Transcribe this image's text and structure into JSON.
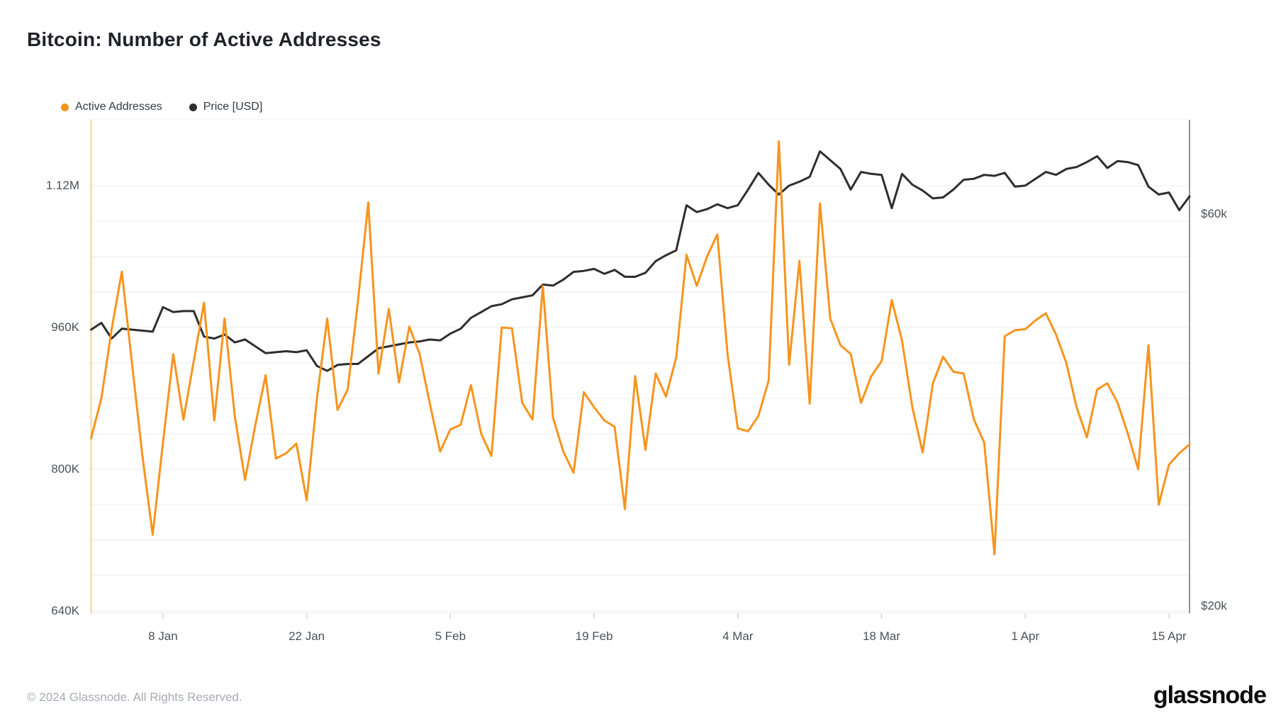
{
  "title": "Bitcoin: Number of Active Addresses",
  "legend": [
    {
      "label": "Active Addresses",
      "color": "#F7941D"
    },
    {
      "label": "Price [USD]",
      "color": "#2E2E2E"
    }
  ],
  "footer": {
    "copyright": "© 2024 Glassnode. All Rights Reserved.",
    "logo_text": "glassnode"
  },
  "colors": {
    "accent_orange": "#F7941D",
    "price_black": "#2E2E2E",
    "gridline": "#ededed",
    "plot_border_left": "#f6cf9a",
    "plot_border_right": "#8d939b",
    "plot_border_bottom": "#e7e9eb",
    "plot_border_top": "#f1f2f3",
    "tick_mark": "#d4d8dc"
  },
  "chart_data": {
    "type": "line",
    "x_unit": "day",
    "x_start_label_implied": "1 Jan",
    "x_ticks": [
      {
        "label": "8 Jan",
        "day": 7
      },
      {
        "label": "22 Jan",
        "day": 21
      },
      {
        "label": "5 Feb",
        "day": 35
      },
      {
        "label": "19 Feb",
        "day": 49
      },
      {
        "label": "4 Mar",
        "day": 63
      },
      {
        "label": "18 Mar",
        "day": 77
      },
      {
        "label": "1 Apr",
        "day": 91
      },
      {
        "label": "15 Apr",
        "day": 105
      }
    ],
    "left_axis": {
      "title": "Active Addresses",
      "tick_labels": [
        {
          "label": "1.12M",
          "value": 1120
        },
        {
          "label": "960K",
          "value": 960
        },
        {
          "label": "800K",
          "value": 800
        },
        {
          "label": "640K",
          "value": 640
        }
      ],
      "unit": "thousand addresses",
      "grid_min": 640,
      "grid_max": 1120,
      "grid_step": 40,
      "range_shown": [
        638,
        1194
      ]
    },
    "right_axis": {
      "title": "Price [USD]",
      "tick_labels": [
        {
          "label": "$60k",
          "value": 60
        },
        {
          "label": "$20k",
          "value": 20
        }
      ],
      "unit": "thousand USD",
      "range_shown": [
        19.3,
        69.6
      ]
    },
    "grid": true,
    "legend_position": "top-left",
    "series": [
      {
        "name": "Active Addresses",
        "axis": "left",
        "color": "#F7941D",
        "values": [
          835,
          880,
          958,
          1023,
          918,
          815,
          726,
          830,
          930,
          856,
          922,
          988,
          855,
          970,
          860,
          788,
          850,
          906,
          812,
          818,
          829,
          765,
          880,
          970,
          867,
          890,
          990,
          1101,
          908,
          981,
          898,
          961,
          930,
          874,
          820,
          845,
          850,
          895,
          840,
          815,
          960,
          959,
          875,
          856,
          1007,
          858,
          820,
          796,
          887,
          870,
          855,
          848,
          755,
          905,
          822,
          908,
          882,
          926,
          1042,
          1007,
          1040,
          1065,
          930,
          846,
          843,
          860,
          900,
          1170,
          918,
          1035,
          874,
          1100,
          970,
          940,
          930,
          875,
          905,
          922,
          991,
          945,
          870,
          819,
          897,
          927,
          910,
          908,
          856,
          830,
          704,
          950,
          957,
          958,
          968,
          976,
          952,
          920,
          870,
          836,
          890,
          897,
          875,
          840,
          800,
          940,
          760,
          805,
          818,
          828
        ]
      },
      {
        "name": "Price [USD]",
        "axis": "right",
        "color": "#2E2E2E",
        "values": [
          48.2,
          48.9,
          47.3,
          48.3,
          48.2,
          48.1,
          48.0,
          50.5,
          50.0,
          50.1,
          50.1,
          47.5,
          47.3,
          47.7,
          46.9,
          47.2,
          46.5,
          45.8,
          45.9,
          46.0,
          45.9,
          46.1,
          44.5,
          44.0,
          44.6,
          44.7,
          44.7,
          45.5,
          46.3,
          46.5,
          46.7,
          46.9,
          47.0,
          47.2,
          47.1,
          47.8,
          48.3,
          49.4,
          50.0,
          50.6,
          50.8,
          51.3,
          51.5,
          51.7,
          52.8,
          52.7,
          53.3,
          54.1,
          54.2,
          54.4,
          53.9,
          54.3,
          53.6,
          53.6,
          54.0,
          55.2,
          55.8,
          56.3,
          60.9,
          60.2,
          60.5,
          61.0,
          60.6,
          60.9,
          62.5,
          64.2,
          63.0,
          62.0,
          62.9,
          63.3,
          63.8,
          66.4,
          65.5,
          64.6,
          62.5,
          64.3,
          64.1,
          64.0,
          60.6,
          64.1,
          63.0,
          62.4,
          61.6,
          61.7,
          62.5,
          63.5,
          63.6,
          64.0,
          63.9,
          64.2,
          62.8,
          62.9,
          63.6,
          64.3,
          64.0,
          64.6,
          64.8,
          65.3,
          65.9,
          64.7,
          65.4,
          65.3,
          65.0,
          62.8,
          62.0,
          62.2,
          60.4,
          61.8
        ]
      }
    ]
  }
}
